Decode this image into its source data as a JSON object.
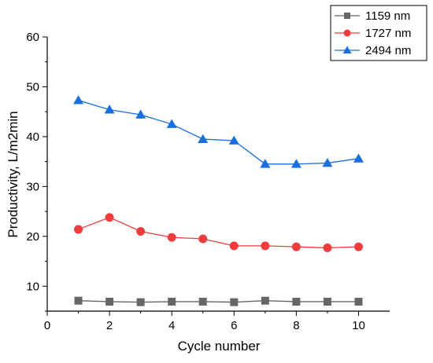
{
  "chart_data": {
    "type": "line",
    "title": "",
    "xlabel": "Cycle number",
    "ylabel": "Productivity, L/m2min",
    "xlim": [
      0,
      11
    ],
    "ylim": [
      5,
      60
    ],
    "x_ticks": [
      0,
      2,
      4,
      6,
      8,
      10
    ],
    "y_ticks": [
      10,
      20,
      30,
      40,
      50,
      60
    ],
    "x_tick_labels": [
      "0",
      "2",
      "4",
      "6",
      "8",
      "10"
    ],
    "y_tick_labels": [
      "10",
      "20",
      "30",
      "40",
      "50",
      "60"
    ],
    "grid": false,
    "legend_position": "top-right",
    "x": [
      1,
      2,
      3,
      4,
      5,
      6,
      7,
      8,
      9,
      10
    ],
    "series": [
      {
        "name": "1159 nm",
        "marker": "square",
        "color": "#666666",
        "values": [
          7.1,
          6.9,
          6.8,
          6.9,
          6.9,
          6.8,
          7.1,
          6.9,
          6.9,
          6.9
        ]
      },
      {
        "name": "1727 nm",
        "marker": "circle",
        "color": "#f03c3c",
        "values": [
          21.4,
          23.8,
          21.0,
          19.8,
          19.5,
          18.1,
          18.1,
          17.9,
          17.7,
          17.9
        ]
      },
      {
        "name": "2494 nm",
        "marker": "triangle",
        "color": "#1a6fdc",
        "values": [
          47.3,
          45.4,
          44.4,
          42.5,
          39.5,
          39.2,
          34.5,
          34.5,
          34.7,
          35.6
        ]
      }
    ]
  }
}
